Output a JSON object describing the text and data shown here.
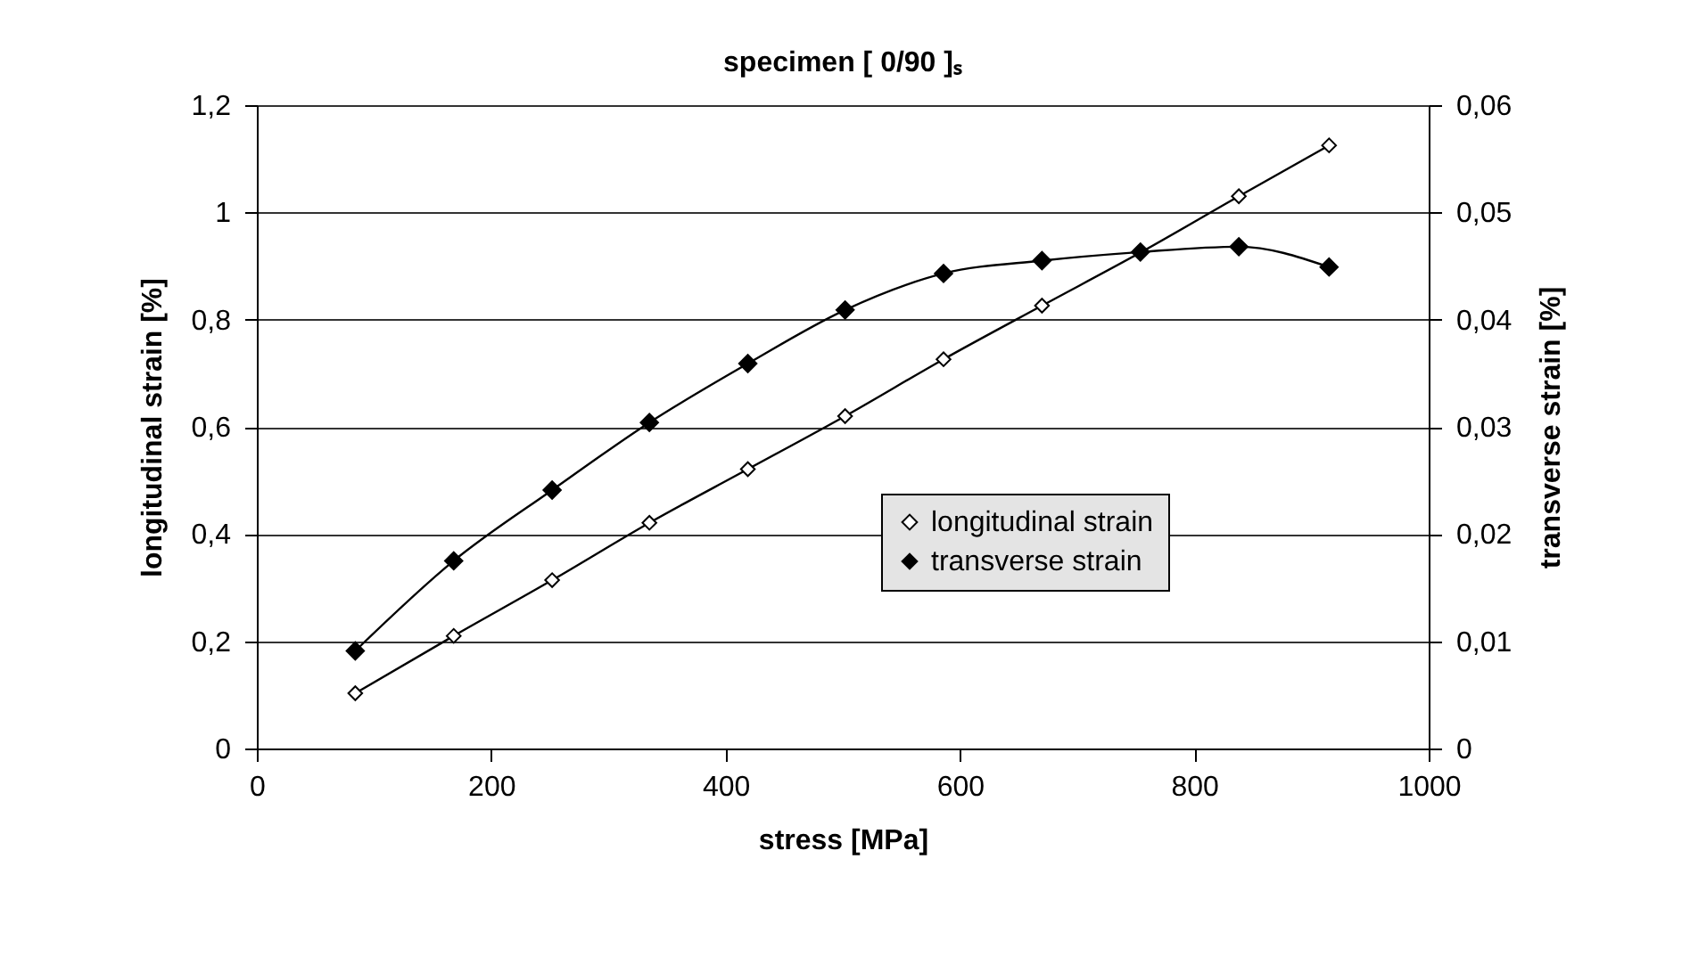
{
  "chart_data": {
    "type": "line",
    "title": "specimen [ 0/90 ]ₛ",
    "xlabel": "stress [MPa]",
    "ylabel": "longitudinal strain [%]",
    "y2label": "transverse strain [%]",
    "x": [
      84,
      168,
      252,
      335,
      419,
      502,
      586,
      670,
      754,
      838,
      915
    ],
    "series": [
      {
        "name": "longitudinal strain",
        "color": "#000000",
        "values": [
          0.103,
          0.21,
          0.314,
          0.421,
          0.521,
          0.62,
          0.726,
          0.826,
          0.925,
          1.03,
          1.125
        ]
      },
      {
        "name": "transverse strain",
        "color": "#000000",
        "axis": "y2",
        "values": [
          0.0091,
          0.0175,
          0.0241,
          0.0304,
          0.0359,
          0.0409,
          0.0443,
          0.0455,
          0.0463,
          0.0468,
          0.0449
        ]
      }
    ],
    "xlim": [
      0,
      1000
    ],
    "xticks": [
      0,
      200,
      400,
      600,
      800,
      1000
    ],
    "ylim": [
      0,
      1.2
    ],
    "yticks": [
      0,
      {
        "value": 0.2,
        "label": "0,2"
      },
      {
        "value": 0.4,
        "label": "0,4"
      },
      {
        "value": 0.6,
        "label": "0,6"
      },
      {
        "value": 0.8,
        "label": "0,8"
      },
      1,
      {
        "value": 1.2,
        "label": "1,2"
      }
    ],
    "y2lim": [
      0,
      0.06
    ],
    "y2ticks": [
      0,
      {
        "value": 0.01,
        "label": "0,01"
      },
      {
        "value": 0.02,
        "label": "0,02"
      },
      {
        "value": 0.03,
        "label": "0,03"
      },
      {
        "value": 0.04,
        "label": "0,04"
      },
      {
        "value": 0.05,
        "label": "0,05"
      },
      {
        "value": 0.06,
        "label": "0,06"
      }
    ],
    "grid": "y",
    "legend": "right",
    "marker": "diamond",
    "line_style": "solid"
  }
}
